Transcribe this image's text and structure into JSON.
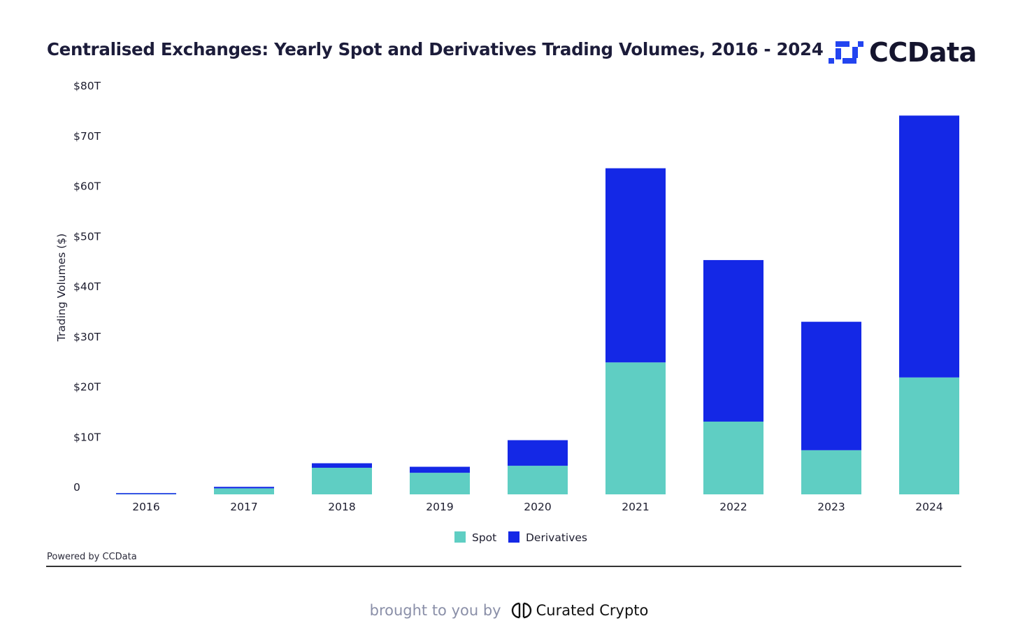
{
  "header": {
    "title": "Centralised Exchanges: Yearly Spot and Derivatives Trading Volumes, 2016 - 2024",
    "logo_text": "CCData"
  },
  "footer": {
    "powered_by": "Powered by CCData",
    "brought_prefix": "brought to you by",
    "brought_brand": "Curated Crypto"
  },
  "colors": {
    "spot": "#5fcec3",
    "derivatives": "#1428e6",
    "logo_blue": "#2344f0"
  },
  "chart_data": {
    "type": "bar",
    "stacked": true,
    "title": "Centralised Exchanges: Yearly Spot and Derivatives Trading Volumes, 2016 - 2024",
    "xlabel": "",
    "ylabel": "Trading Volumes ($)",
    "ylim": [
      0,
      80
    ],
    "yticks": [
      0,
      10,
      20,
      30,
      40,
      50,
      60,
      70,
      80
    ],
    "ytick_labels": [
      "0",
      "$10T",
      "$20T",
      "$30T",
      "$40T",
      "$50T",
      "$60T",
      "$70T",
      "$80T"
    ],
    "categories": [
      "2016",
      "2017",
      "2018",
      "2019",
      "2020",
      "2021",
      "2022",
      "2023",
      "2024"
    ],
    "series": [
      {
        "name": "Spot",
        "values": [
          0.2,
          1.2,
          5.3,
          4.3,
          5.7,
          26.3,
          14.5,
          8.8,
          23.3
        ]
      },
      {
        "name": "Derivatives",
        "values": [
          0.05,
          0.3,
          0.9,
          1.2,
          5.1,
          38.7,
          32.2,
          25.6,
          52.2
        ]
      }
    ],
    "grid": false,
    "legend": "bottom-center"
  }
}
